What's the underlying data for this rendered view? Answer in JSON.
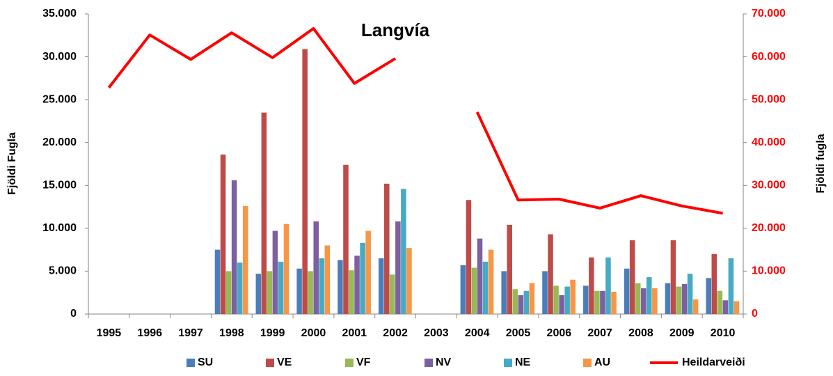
{
  "chart_data": {
    "type": "bar",
    "title": "Langvía",
    "ylabel": "Fjöldi Fugla",
    "y2label": "Fjöldi fugla",
    "categories": [
      "1995",
      "1996",
      "1997",
      "1998",
      "1999",
      "2000",
      "2001",
      "2002",
      "2003",
      "2004",
      "2005",
      "2006",
      "2007",
      "2008",
      "2009",
      "2010"
    ],
    "ylim": [
      0,
      35000
    ],
    "yticks": [
      0,
      {
        "value": 5000,
        "label": "5.000"
      },
      {
        "value": 10000,
        "label": "10.000"
      },
      {
        "value": 15000,
        "label": "15.000"
      },
      {
        "value": 20000,
        "label": "20.000"
      },
      {
        "value": 25000,
        "label": "25.000"
      },
      {
        "value": 30000,
        "label": "30.000"
      },
      {
        "value": 35000,
        "label": "35.000"
      }
    ],
    "y2lim": [
      0,
      70000
    ],
    "y2ticks": [
      0,
      {
        "value": 10000,
        "label": "10.000"
      },
      {
        "value": 20000,
        "label": "20.000"
      },
      {
        "value": 30000,
        "label": "30.000"
      },
      {
        "value": 40000,
        "label": "40.000"
      },
      {
        "value": 50000,
        "label": "50.000"
      },
      {
        "value": 60000,
        "label": "60.000"
      },
      {
        "value": 70000,
        "label": "70.000"
      }
    ],
    "legend": "bottom",
    "series": [
      {
        "name": "SU",
        "type": "bar",
        "color": "#4a7ebb",
        "values": [
          null,
          null,
          null,
          7500,
          4700,
          5300,
          6300,
          6500,
          null,
          5700,
          5000,
          5000,
          3300,
          5300,
          3600,
          4200
        ]
      },
      {
        "name": "VE",
        "type": "bar",
        "color": "#be4b48",
        "values": [
          null,
          null,
          null,
          18600,
          23500,
          30900,
          17400,
          15200,
          null,
          13300,
          10400,
          9300,
          6600,
          8600,
          8600,
          7000
        ]
      },
      {
        "name": "VF",
        "type": "bar",
        "color": "#98b954",
        "values": [
          null,
          null,
          null,
          5000,
          5000,
          5000,
          5100,
          4600,
          null,
          5400,
          2900,
          3300,
          2700,
          3600,
          3200,
          2700
        ]
      },
      {
        "name": "NV",
        "type": "bar",
        "color": "#7d60a0",
        "values": [
          null,
          null,
          null,
          15600,
          9700,
          10800,
          6800,
          10800,
          null,
          8800,
          2200,
          2200,
          2700,
          3000,
          3500,
          1600
        ]
      },
      {
        "name": "NE",
        "type": "bar",
        "color": "#46aac5",
        "values": [
          null,
          null,
          null,
          6000,
          6100,
          6500,
          8300,
          14600,
          null,
          6100,
          2700,
          3200,
          6600,
          4300,
          4700,
          6500
        ]
      },
      {
        "name": "AU",
        "type": "bar",
        "color": "#f79646",
        "values": [
          null,
          null,
          null,
          12600,
          10500,
          8000,
          9700,
          7700,
          null,
          7500,
          3600,
          4000,
          2600,
          3000,
          1700,
          1500
        ]
      },
      {
        "name": "Heildarveiði",
        "type": "line",
        "axis": "y2",
        "color": "#ff0000",
        "values": [
          52800,
          65100,
          59400,
          65600,
          59800,
          66600,
          53800,
          59600,
          null,
          47100,
          26600,
          26800,
          24700,
          27600,
          25200,
          23500
        ]
      }
    ]
  }
}
